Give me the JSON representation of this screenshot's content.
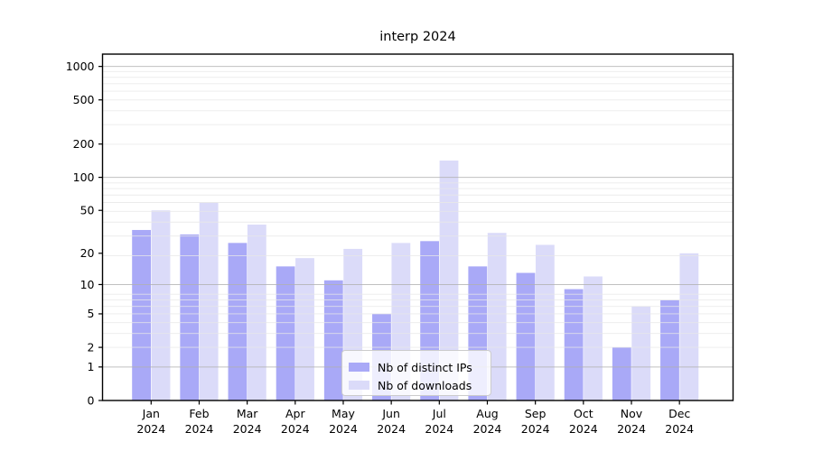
{
  "chart_data": {
    "type": "bar",
    "title": "interp 2024",
    "xlabel": "",
    "ylabel": "",
    "year": "2024",
    "categories": [
      "Jan",
      "Feb",
      "Mar",
      "Apr",
      "May",
      "Jun",
      "Jul",
      "Aug",
      "Sep",
      "Oct",
      "Nov",
      "Dec"
    ],
    "series": [
      {
        "name": "Nb of distinct IPs",
        "color": "#a9a9f7",
        "values": [
          33,
          30,
          25,
          15,
          11,
          5,
          26,
          15,
          13,
          9,
          2,
          7
        ]
      },
      {
        "name": "Nb of downloads",
        "color": "#dbdbf9",
        "values": [
          50,
          59,
          37,
          18,
          22,
          25,
          142,
          31,
          24,
          12,
          6,
          20
        ]
      }
    ],
    "yticks": [
      0,
      1,
      2,
      5,
      10,
      20,
      50,
      100,
      200,
      500,
      1000
    ],
    "y_scale": "log10(1+v)",
    "ylim": [
      0,
      1290
    ],
    "major_grid_values": [
      1,
      10,
      100,
      1000
    ],
    "grid": true,
    "legend_position": "lower-center-inside",
    "colors": {
      "spine": "#000000",
      "major_grid": "#b0b0b0",
      "minor_grid": "#e7e7e7",
      "background": "#ffffff"
    }
  }
}
